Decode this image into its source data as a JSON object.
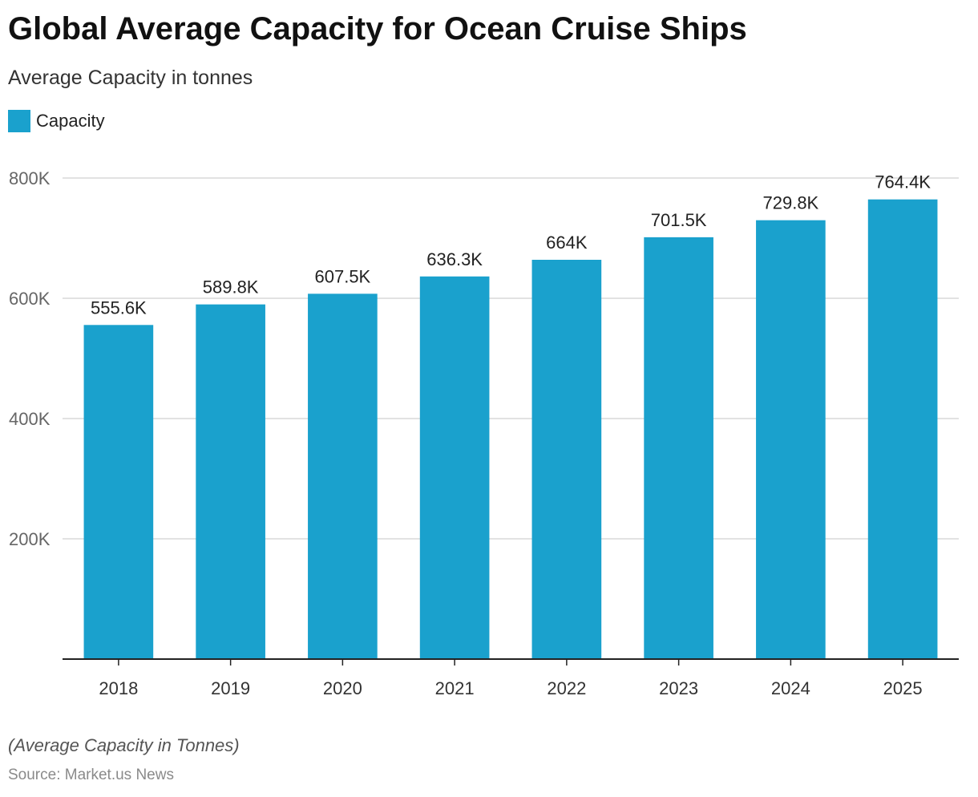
{
  "chart_data": {
    "type": "bar",
    "title": "Global Average Capacity for Ocean Cruise Ships",
    "subtitle": "Average Capacity in tonnes",
    "categories": [
      "2018",
      "2019",
      "2020",
      "2021",
      "2022",
      "2023",
      "2024",
      "2025"
    ],
    "series": [
      {
        "name": "Capacity",
        "color": "#1aa1cd",
        "values": [
          555600,
          589800,
          607500,
          636300,
          664000,
          701500,
          729800,
          764400
        ],
        "data_labels": [
          "555.6K",
          "589.8K",
          "607.5K",
          "636.3K",
          "664K",
          "701.5K",
          "729.8K",
          "764.4K"
        ]
      }
    ],
    "ylim": [
      0,
      800000
    ],
    "yticks": [
      200000,
      400000,
      600000,
      800000
    ],
    "ytick_labels": [
      "200K",
      "400K",
      "600K",
      "800K"
    ],
    "xlabel": "",
    "ylabel": "",
    "grid": true,
    "legend_position": "top-left"
  },
  "footnote": "(Average Capacity in Tonnes)",
  "source": "Source: Market.us News"
}
